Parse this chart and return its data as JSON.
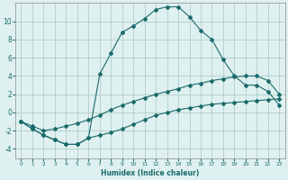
{
  "xlabel": "Humidex (Indice chaleur)",
  "background_color": "#dff0f0",
  "grid_color": "#b0cecb",
  "line_color": "#1a6b6b",
  "xlim": [
    -0.5,
    23.5
  ],
  "ylim": [
    -5,
    12
  ],
  "xticks": [
    0,
    1,
    2,
    3,
    4,
    5,
    6,
    7,
    8,
    9,
    10,
    11,
    12,
    13,
    14,
    15,
    16,
    17,
    18,
    19,
    20,
    21,
    22,
    23
  ],
  "yticks": [
    -4,
    -2,
    0,
    2,
    4,
    6,
    8,
    10
  ],
  "line1_x": [
    0,
    1,
    2,
    3,
    4,
    5,
    6,
    7,
    8,
    9,
    10,
    11,
    12,
    13,
    14,
    15,
    16,
    17,
    18,
    19,
    20,
    21,
    22,
    23
  ],
  "line1_y": [
    -1.0,
    -1.8,
    -2.5,
    -3.0,
    -3.5,
    -3.5,
    -2.8,
    4.2,
    6.5,
    8.8,
    9.5,
    10.3,
    11.3,
    11.6,
    11.6,
    10.5,
    9.0,
    8.0,
    5.8,
    4.0,
    3.0,
    3.0,
    2.3,
    0.8
  ],
  "line2_x": [
    0,
    1,
    2,
    3,
    4,
    5,
    6,
    7,
    8,
    9,
    10,
    11,
    12,
    13,
    14,
    15,
    16,
    17,
    18,
    19,
    20,
    21,
    22,
    23
  ],
  "line2_y": [
    -1.0,
    -1.5,
    -2.0,
    -1.8,
    -1.5,
    -1.2,
    -0.8,
    -0.3,
    0.3,
    0.8,
    1.2,
    1.6,
    2.0,
    2.3,
    2.6,
    3.0,
    3.2,
    3.5,
    3.7,
    3.9,
    4.0,
    4.0,
    3.5,
    2.0
  ],
  "line3_x": [
    0,
    1,
    2,
    3,
    4,
    5,
    6,
    7,
    8,
    9,
    10,
    11,
    12,
    13,
    14,
    15,
    16,
    17,
    18,
    19,
    20,
    21,
    22,
    23
  ],
  "line3_y": [
    -1.0,
    -1.8,
    -2.5,
    -3.0,
    -3.5,
    -3.5,
    -2.8,
    -2.5,
    -2.2,
    -1.8,
    -1.3,
    -0.8,
    -0.3,
    0.0,
    0.3,
    0.5,
    0.7,
    0.9,
    1.0,
    1.1,
    1.2,
    1.3,
    1.4,
    1.5
  ]
}
